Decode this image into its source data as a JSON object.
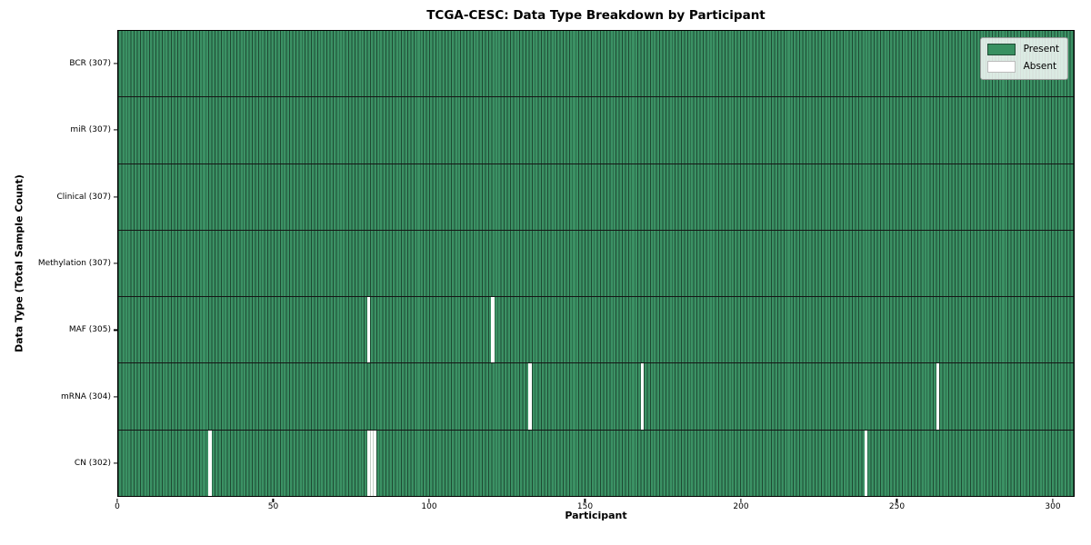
{
  "chart_data": {
    "type": "heatmap",
    "title": "TCGA-CESC: Data Type Breakdown by Participant",
    "xlabel": "Participant",
    "ylabel": "Data Type (Total Sample Count)",
    "x_ticks": [
      0,
      50,
      100,
      150,
      200,
      250,
      300
    ],
    "xlim": [
      0,
      307
    ],
    "n_participants": 307,
    "rows": [
      {
        "label": "BCR (307)",
        "data_type": "BCR",
        "total": 307,
        "absent_participants": []
      },
      {
        "label": "miR (307)",
        "data_type": "miR",
        "total": 307,
        "absent_participants": []
      },
      {
        "label": "Clinical (307)",
        "data_type": "Clinical",
        "total": 307,
        "absent_participants": []
      },
      {
        "label": "Methylation (307)",
        "data_type": "Methylation",
        "total": 307,
        "absent_participants": []
      },
      {
        "label": "MAF (305)",
        "data_type": "MAF",
        "total": 305,
        "absent_participants": [
          80,
          120
        ]
      },
      {
        "label": "mRNA (304)",
        "data_type": "mRNA",
        "total": 304,
        "absent_participants": [
          132,
          168,
          263
        ]
      },
      {
        "label": "CN (302)",
        "data_type": "CN",
        "total": 302,
        "absent_participants": [
          29,
          80,
          81,
          82,
          240
        ]
      }
    ],
    "legend": [
      {
        "label": "Present",
        "color": "#389161",
        "edge": "#1e4a33"
      },
      {
        "label": "Absent",
        "color": "#ffffff",
        "edge": "#bbbbbb"
      }
    ],
    "legend_position": "upper right",
    "colors": {
      "present": "#3b9164",
      "absent": "#ffffff",
      "cell_edge": "#1e4a33",
      "row_separator": "#151515",
      "plot_border": "#000000",
      "background": "#ffffff"
    },
    "grid": "per-cell vertical edges, black row separators"
  }
}
